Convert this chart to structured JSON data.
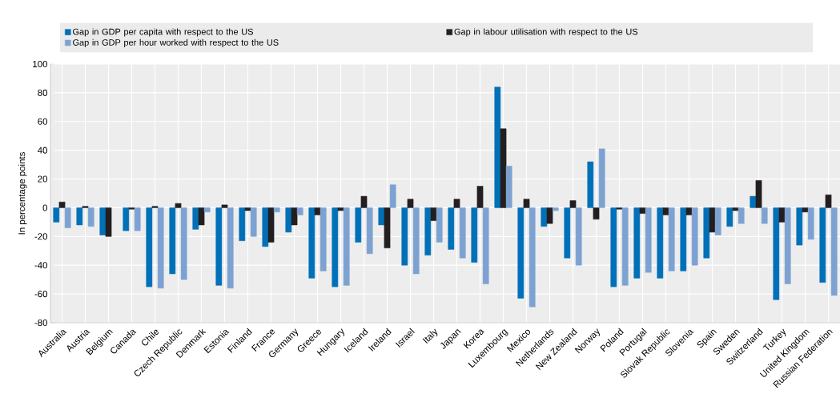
{
  "chart_data": {
    "type": "bar",
    "ylabel": "In percentage points",
    "categories": [
      "Australia",
      "Austria",
      "Belgium",
      "Canada",
      "Chile",
      "Czech Republic",
      "Denmark",
      "Estonia",
      "Finland",
      "France",
      "Germany",
      "Greece",
      "Hungary",
      "Iceland",
      "Ireland",
      "Israel",
      "Italy",
      "Japan",
      "Korea",
      "Luxembourg",
      "Mexico",
      "Netherlands",
      "New Zealand",
      "Norway",
      "Poland",
      "Portugal",
      "Slovak Republic",
      "Slovenia",
      "Spain",
      "Sweden",
      "Switzerland",
      "Turkey",
      "United Kingdom",
      "Russian Federation"
    ],
    "series": [
      {
        "name": "Gap in GDP per capita with respect to the US",
        "color": "#0070b8",
        "values": [
          -10,
          -12,
          -19,
          -16,
          -55,
          -46,
          -15,
          -54,
          -23,
          -27,
          -17,
          -49,
          -55,
          -24,
          -12,
          -40,
          -33,
          -29,
          -38,
          84,
          -63,
          -13,
          -35,
          32,
          -55,
          -49,
          -49,
          -44,
          -35,
          -13,
          8,
          -64,
          -26,
          -52
        ]
      },
      {
        "name": "Gap in labour utilisation with respect to the US",
        "color": "#231f20",
        "values": [
          4,
          1,
          -20,
          -1,
          1,
          3,
          -12,
          2,
          -2,
          -24,
          -12,
          -5,
          -2,
          8,
          -28,
          6,
          -9,
          6,
          15,
          55,
          6,
          -11,
          5,
          -8,
          -1,
          -4,
          -5,
          -5,
          -17,
          -2,
          19,
          -10,
          -3,
          9
        ]
      },
      {
        "name": "Gap in GDP per hour worked with respect to the US",
        "color": "#7da2d2",
        "values": [
          -14,
          -13,
          null,
          -16,
          -56,
          -50,
          -3,
          -56,
          -20,
          -3,
          -5,
          -44,
          -54,
          -32,
          16,
          -46,
          -24,
          -35,
          -53,
          29,
          -69,
          -2,
          -40,
          41,
          -54,
          -45,
          -44,
          -40,
          -19,
          -11,
          -11,
          -53,
          -22,
          -61
        ]
      }
    ],
    "ylim": [
      -80,
      100
    ],
    "yticks": [
      -80,
      -60,
      -40,
      -20,
      0,
      20,
      40,
      60,
      80,
      100
    ],
    "grid": true,
    "legend": "top"
  }
}
